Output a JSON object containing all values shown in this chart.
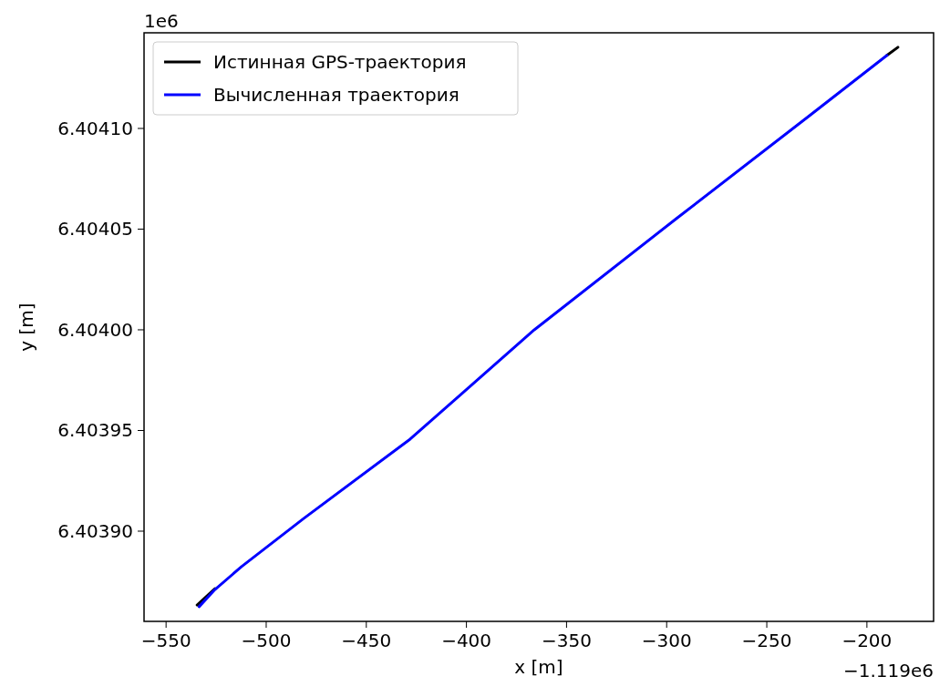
{
  "chart_data": {
    "type": "line",
    "xlabel": "x [m]",
    "ylabel": "y [m]",
    "annotations": [
      "1e6",
      "−1.119e6"
    ],
    "xlim": [
      -561,
      -166.7
    ],
    "ylim": [
      6.4038552,
      6.4041475
    ],
    "xticks": [
      {
        "value": -550,
        "label": "−550"
      },
      {
        "value": -500,
        "label": "−500"
      },
      {
        "value": -450,
        "label": "−450"
      },
      {
        "value": -400,
        "label": "−400"
      },
      {
        "value": -350,
        "label": "−350"
      },
      {
        "value": -300,
        "label": "−300"
      },
      {
        "value": -250,
        "label": "−250"
      },
      {
        "value": -200,
        "label": "−200"
      }
    ],
    "yticks": [
      {
        "value": 6.4039,
        "label": "6.40390"
      },
      {
        "value": 6.40395,
        "label": "6.40395"
      },
      {
        "value": 6.404,
        "label": "6.40400"
      },
      {
        "value": 6.40405,
        "label": "6.40405"
      },
      {
        "value": 6.4041,
        "label": "6.40410"
      }
    ],
    "legend": "top left",
    "grid": false,
    "marker": "none",
    "line_style": "solid",
    "series": [
      {
        "name": "Истинная GPS-траектория",
        "color": "#000000",
        "x": [
          -534.5,
          -525.6,
          -512.3,
          -481.3,
          -428.1,
          -366.1,
          -295.2,
          -190,
          -184.5
        ],
        "values": [
          6.4038633,
          6.4038715,
          null,
          null,
          null,
          null,
          null,
          6.4041363,
          6.4041403
        ]
      },
      {
        "name": "Вычисленная траектория",
        "color": "#0000ff",
        "x": [
          -533.5,
          -525.6,
          -512.3,
          -481.3,
          -428.1,
          -366.1,
          -295.2,
          -228.7,
          -190
        ],
        "values": [
          6.4038625,
          6.403871,
          6.4038824,
          6.4039063,
          6.4039457,
          6.404,
          6.4040552,
          6.4041063,
          6.4041363
        ]
      }
    ]
  }
}
